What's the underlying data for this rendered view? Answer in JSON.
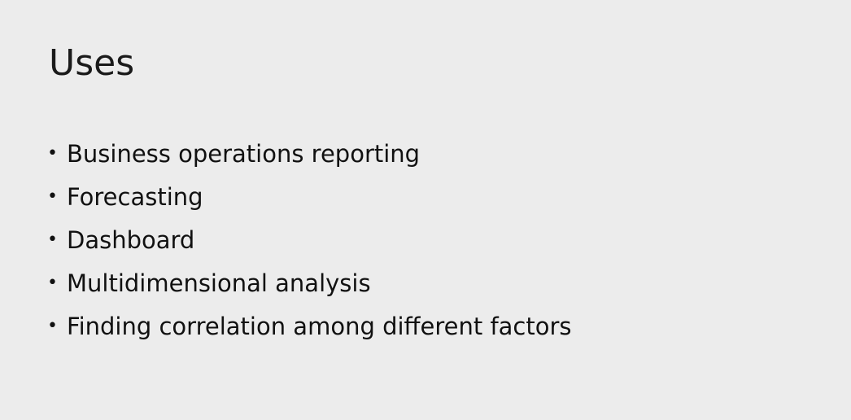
{
  "slide": {
    "title": "Uses",
    "bullet_glyph": "•",
    "items": [
      "Business operations reporting",
      "Forecasting",
      "Dashboard",
      "Multidimensional analysis",
      "Finding correlation among different factors"
    ]
  }
}
